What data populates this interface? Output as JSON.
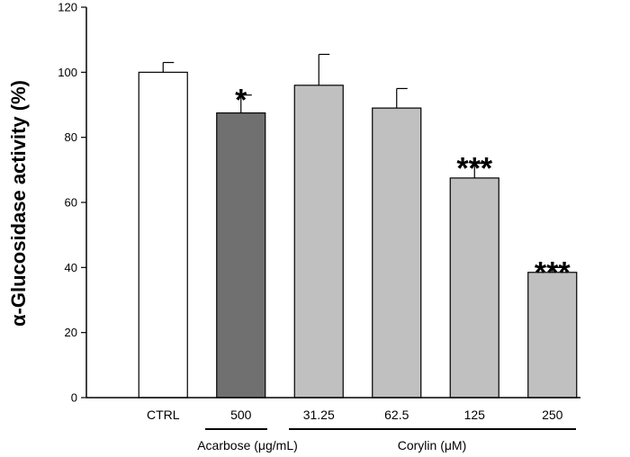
{
  "chart_data": {
    "type": "bar",
    "ylabel": "α-Glucosidase activity (%)",
    "xlabel": "",
    "title": "",
    "ylim": [
      0,
      120
    ],
    "yticks": [
      "0",
      "20",
      "40",
      "60",
      "80",
      "100",
      "120"
    ],
    "categories": [
      "CTRL",
      "500",
      "31.25",
      "62.5",
      "125",
      "250"
    ],
    "values": [
      100,
      87.5,
      96,
      89,
      67.5,
      38.5
    ],
    "errors": [
      3,
      5.5,
      9.5,
      6,
      4.5,
      1.5
    ],
    "significance": [
      "",
      "*",
      "",
      "",
      "***",
      "***"
    ],
    "bar_colors": [
      "#ffffff",
      "#707070",
      "#c0c0c0",
      "#c0c0c0",
      "#c0c0c0",
      "#c0c0c0"
    ],
    "groups": [
      {
        "label": "Acarbose (μg/mL)",
        "categories": [
          "500"
        ]
      },
      {
        "label": "Corylin (μM)",
        "categories": [
          "31.25",
          "62.5",
          "125",
          "250"
        ]
      }
    ]
  }
}
